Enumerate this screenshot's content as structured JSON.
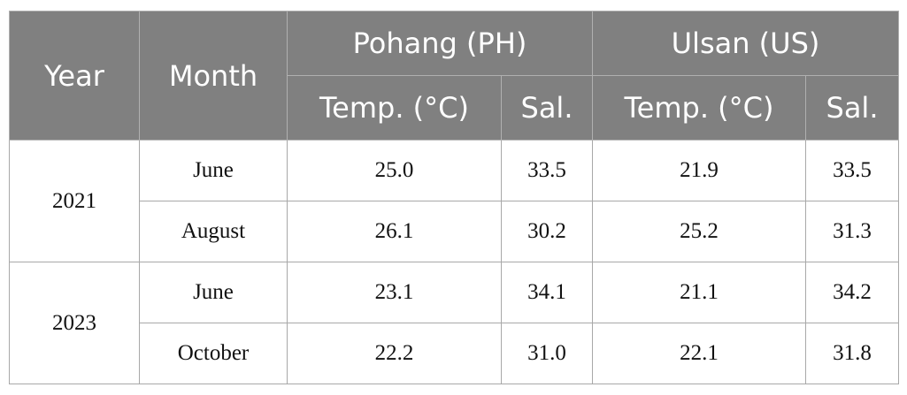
{
  "table": {
    "header": {
      "year": "Year",
      "month": "Month",
      "groups": [
        "Pohang (PH)",
        "Ulsan (US)"
      ],
      "subheaders": [
        "Temp. (°C)",
        "Sal.",
        "Temp. (°C)",
        "Sal."
      ]
    },
    "groups": [
      {
        "year": "2021",
        "rows": [
          {
            "month": "June",
            "values": [
              "25.0",
              "33.5",
              "21.9",
              "33.5"
            ]
          },
          {
            "month": "August",
            "values": [
              "26.1",
              "30.2",
              "25.2",
              "31.3"
            ]
          }
        ]
      },
      {
        "year": "2023",
        "rows": [
          {
            "month": "June",
            "values": [
              "23.1",
              "34.1",
              "21.1",
              "34.2"
            ]
          },
          {
            "month": "October",
            "values": [
              "22.2",
              "31.0",
              "22.1",
              "31.8"
            ]
          }
        ]
      }
    ]
  }
}
